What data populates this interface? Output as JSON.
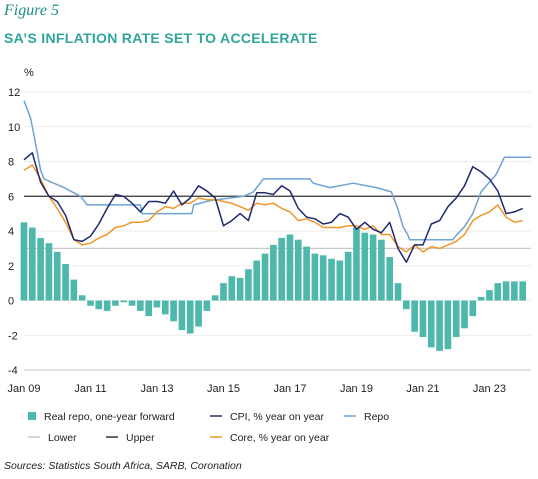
{
  "figure_label": "Figure 5",
  "title": "SA’S INFLATION RATE SET TO ACCELERATE",
  "source": "Sources: Statistics South Africa, SARB, Coronation",
  "colors": {
    "real_repo": "#4fb8ad",
    "cpi": "#1d2a6e",
    "repo": "#6fa3d4",
    "lower": "#c9c9c9",
    "upper": "#333333",
    "core": "#f0962a",
    "title": "#2fa59c",
    "figure_label": "#1f8f8a"
  },
  "chart_data": {
    "type": "line",
    "ylabel": "%",
    "ylim": [
      -4,
      12
    ],
    "yticks": [
      "12",
      "10",
      "8",
      "6",
      "4",
      "2",
      "0",
      "-2",
      "-4"
    ],
    "xlim": [
      2009.0,
      2024.25
    ],
    "xticks": [
      {
        "label": "Jan 09",
        "x": 2009.0
      },
      {
        "label": "Jan 11",
        "x": 2011.0
      },
      {
        "label": "Jan 13",
        "x": 2013.0
      },
      {
        "label": "Jan 15",
        "x": 2015.0
      },
      {
        "label": "Jan 17",
        "x": 2017.0
      },
      {
        "label": "Jan 19",
        "x": 2019.0
      },
      {
        "label": "Jan 21",
        "x": 2021.0
      },
      {
        "label": "Jan 23",
        "x": 2023.0
      }
    ],
    "legend_position": "bottom",
    "horizontal_lines": [
      {
        "name": "Lower",
        "value": 3
      },
      {
        "name": "Upper",
        "value": 6
      }
    ],
    "series": [
      {
        "name": "Real repo, one-year forward",
        "kind": "bar",
        "points": [
          [
            2009.0,
            4.5
          ],
          [
            2009.25,
            4.2
          ],
          [
            2009.5,
            3.6
          ],
          [
            2009.75,
            3.3
          ],
          [
            2010.0,
            2.8
          ],
          [
            2010.25,
            2.1
          ],
          [
            2010.5,
            1.2
          ],
          [
            2010.75,
            0.3
          ],
          [
            2011.0,
            -0.3
          ],
          [
            2011.25,
            -0.5
          ],
          [
            2011.5,
            -0.6
          ],
          [
            2011.75,
            -0.3
          ],
          [
            2012.0,
            -0.1
          ],
          [
            2012.25,
            -0.3
          ],
          [
            2012.5,
            -0.6
          ],
          [
            2012.75,
            -0.9
          ],
          [
            2013.0,
            -0.4
          ],
          [
            2013.25,
            -0.8
          ],
          [
            2013.5,
            -1.2
          ],
          [
            2013.75,
            -1.7
          ],
          [
            2014.0,
            -1.9
          ],
          [
            2014.25,
            -1.5
          ],
          [
            2014.5,
            -0.6
          ],
          [
            2014.75,
            0.3
          ],
          [
            2015.0,
            1.0
          ],
          [
            2015.25,
            1.4
          ],
          [
            2015.5,
            1.3
          ],
          [
            2015.75,
            1.8
          ],
          [
            2016.0,
            2.3
          ],
          [
            2016.25,
            2.7
          ],
          [
            2016.5,
            3.2
          ],
          [
            2016.75,
            3.6
          ],
          [
            2017.0,
            3.8
          ],
          [
            2017.25,
            3.5
          ],
          [
            2017.5,
            3.1
          ],
          [
            2017.75,
            2.7
          ],
          [
            2018.0,
            2.6
          ],
          [
            2018.25,
            2.4
          ],
          [
            2018.5,
            2.3
          ],
          [
            2018.75,
            2.8
          ],
          [
            2019.0,
            4.2
          ],
          [
            2019.25,
            3.9
          ],
          [
            2019.5,
            3.8
          ],
          [
            2019.75,
            3.5
          ],
          [
            2020.0,
            2.5
          ],
          [
            2020.25,
            1.0
          ],
          [
            2020.5,
            -0.5
          ],
          [
            2020.75,
            -1.8
          ],
          [
            2021.0,
            -2.1
          ],
          [
            2021.25,
            -2.7
          ],
          [
            2021.5,
            -2.9
          ],
          [
            2021.75,
            -2.8
          ],
          [
            2022.0,
            -2.1
          ],
          [
            2022.25,
            -1.6
          ],
          [
            2022.5,
            -0.9
          ],
          [
            2022.75,
            0.2
          ],
          [
            2023.0,
            0.6
          ],
          [
            2023.25,
            1.0
          ],
          [
            2023.5,
            1.1
          ],
          [
            2023.75,
            1.1
          ],
          [
            2024.0,
            1.1
          ]
        ]
      },
      {
        "name": "CPI, % year on year",
        "kind": "line",
        "points": [
          [
            2009.0,
            8.1
          ],
          [
            2009.25,
            8.5
          ],
          [
            2009.5,
            6.8
          ],
          [
            2009.75,
            6.0
          ],
          [
            2010.0,
            5.7
          ],
          [
            2010.25,
            4.9
          ],
          [
            2010.5,
            3.5
          ],
          [
            2010.75,
            3.4
          ],
          [
            2011.0,
            3.7
          ],
          [
            2011.25,
            4.4
          ],
          [
            2011.5,
            5.3
          ],
          [
            2011.75,
            6.1
          ],
          [
            2012.0,
            6.0
          ],
          [
            2012.25,
            5.6
          ],
          [
            2012.5,
            5.1
          ],
          [
            2012.75,
            5.7
          ],
          [
            2013.0,
            5.7
          ],
          [
            2013.25,
            5.6
          ],
          [
            2013.5,
            6.3
          ],
          [
            2013.75,
            5.5
          ],
          [
            2014.0,
            5.9
          ],
          [
            2014.25,
            6.6
          ],
          [
            2014.5,
            6.3
          ],
          [
            2014.75,
            5.9
          ],
          [
            2015.0,
            4.3
          ],
          [
            2015.25,
            4.6
          ],
          [
            2015.5,
            5.0
          ],
          [
            2015.75,
            4.6
          ],
          [
            2016.0,
            6.2
          ],
          [
            2016.25,
            6.2
          ],
          [
            2016.5,
            6.1
          ],
          [
            2016.75,
            6.6
          ],
          [
            2017.0,
            6.3
          ],
          [
            2017.25,
            5.3
          ],
          [
            2017.5,
            4.8
          ],
          [
            2017.75,
            4.7
          ],
          [
            2018.0,
            4.4
          ],
          [
            2018.25,
            4.5
          ],
          [
            2018.5,
            5.0
          ],
          [
            2018.75,
            4.8
          ],
          [
            2019.0,
            4.1
          ],
          [
            2019.25,
            4.5
          ],
          [
            2019.5,
            4.1
          ],
          [
            2019.75,
            3.9
          ],
          [
            2020.0,
            4.5
          ],
          [
            2020.25,
            3.0
          ],
          [
            2020.5,
            2.2
          ],
          [
            2020.75,
            3.2
          ],
          [
            2021.0,
            3.2
          ],
          [
            2021.25,
            4.4
          ],
          [
            2021.5,
            4.6
          ],
          [
            2021.75,
            5.4
          ],
          [
            2022.0,
            5.9
          ],
          [
            2022.25,
            6.6
          ],
          [
            2022.5,
            7.7
          ],
          [
            2022.75,
            7.4
          ],
          [
            2023.0,
            7.0
          ],
          [
            2023.25,
            6.3
          ],
          [
            2023.5,
            5.0
          ],
          [
            2023.75,
            5.1
          ],
          [
            2024.0,
            5.3
          ]
        ]
      },
      {
        "name": "Repo",
        "kind": "line",
        "points": [
          [
            2009.0,
            11.5
          ],
          [
            2009.2,
            10.5
          ],
          [
            2009.3,
            9.5
          ],
          [
            2009.5,
            7.5
          ],
          [
            2009.6,
            7.0
          ],
          [
            2010.2,
            6.5
          ],
          [
            2010.7,
            6.0
          ],
          [
            2010.9,
            5.5
          ],
          [
            2012.5,
            5.5
          ],
          [
            2012.55,
            5.0
          ],
          [
            2014.05,
            5.0
          ],
          [
            2014.1,
            5.5
          ],
          [
            2014.6,
            5.75
          ],
          [
            2015.6,
            6.0
          ],
          [
            2015.9,
            6.25
          ],
          [
            2016.2,
            7.0
          ],
          [
            2017.6,
            7.0
          ],
          [
            2017.7,
            6.75
          ],
          [
            2018.2,
            6.5
          ],
          [
            2018.9,
            6.75
          ],
          [
            2019.6,
            6.5
          ],
          [
            2020.05,
            6.25
          ],
          [
            2020.25,
            5.25
          ],
          [
            2020.4,
            4.25
          ],
          [
            2020.55,
            3.75
          ],
          [
            2020.6,
            3.5
          ],
          [
            2021.9,
            3.5
          ],
          [
            2022.0,
            3.75
          ],
          [
            2022.25,
            4.25
          ],
          [
            2022.5,
            5.0
          ],
          [
            2022.75,
            6.25
          ],
          [
            2023.2,
            7.25
          ],
          [
            2023.45,
            8.25
          ],
          [
            2024.25,
            8.25
          ]
        ]
      },
      {
        "name": "Core, % year on year",
        "kind": "line",
        "points": [
          [
            2009.0,
            7.5
          ],
          [
            2009.25,
            7.8
          ],
          [
            2009.5,
            7.0
          ],
          [
            2009.75,
            6.0
          ],
          [
            2010.0,
            5.3
          ],
          [
            2010.25,
            4.5
          ],
          [
            2010.5,
            3.5
          ],
          [
            2010.75,
            3.2
          ],
          [
            2011.0,
            3.3
          ],
          [
            2011.25,
            3.6
          ],
          [
            2011.5,
            3.8
          ],
          [
            2011.75,
            4.2
          ],
          [
            2012.0,
            4.3
          ],
          [
            2012.25,
            4.5
          ],
          [
            2012.5,
            4.5
          ],
          [
            2012.75,
            4.6
          ],
          [
            2013.0,
            5.1
          ],
          [
            2013.25,
            5.4
          ],
          [
            2013.5,
            5.3
          ],
          [
            2013.75,
            5.6
          ],
          [
            2014.0,
            5.6
          ],
          [
            2014.25,
            5.9
          ],
          [
            2014.5,
            5.8
          ],
          [
            2014.75,
            5.8
          ],
          [
            2015.0,
            5.7
          ],
          [
            2015.25,
            5.6
          ],
          [
            2015.5,
            5.4
          ],
          [
            2015.75,
            5.2
          ],
          [
            2016.0,
            5.6
          ],
          [
            2016.25,
            5.5
          ],
          [
            2016.5,
            5.6
          ],
          [
            2016.75,
            5.3
          ],
          [
            2017.0,
            5.1
          ],
          [
            2017.25,
            4.6
          ],
          [
            2017.5,
            4.7
          ],
          [
            2017.75,
            4.5
          ],
          [
            2018.0,
            4.2
          ],
          [
            2018.25,
            4.2
          ],
          [
            2018.5,
            4.2
          ],
          [
            2018.75,
            4.3
          ],
          [
            2019.0,
            4.3
          ],
          [
            2019.25,
            4.1
          ],
          [
            2019.5,
            4.3
          ],
          [
            2019.75,
            3.8
          ],
          [
            2020.0,
            3.8
          ],
          [
            2020.25,
            3.1
          ],
          [
            2020.5,
            2.8
          ],
          [
            2020.75,
            3.2
          ],
          [
            2021.0,
            2.8
          ],
          [
            2021.25,
            3.1
          ],
          [
            2021.5,
            3.0
          ],
          [
            2021.75,
            3.2
          ],
          [
            2022.0,
            3.4
          ],
          [
            2022.25,
            3.8
          ],
          [
            2022.5,
            4.6
          ],
          [
            2022.75,
            4.9
          ],
          [
            2023.0,
            5.1
          ],
          [
            2023.25,
            5.5
          ],
          [
            2023.5,
            4.8
          ],
          [
            2023.75,
            4.5
          ],
          [
            2024.0,
            4.6
          ]
        ]
      }
    ]
  }
}
